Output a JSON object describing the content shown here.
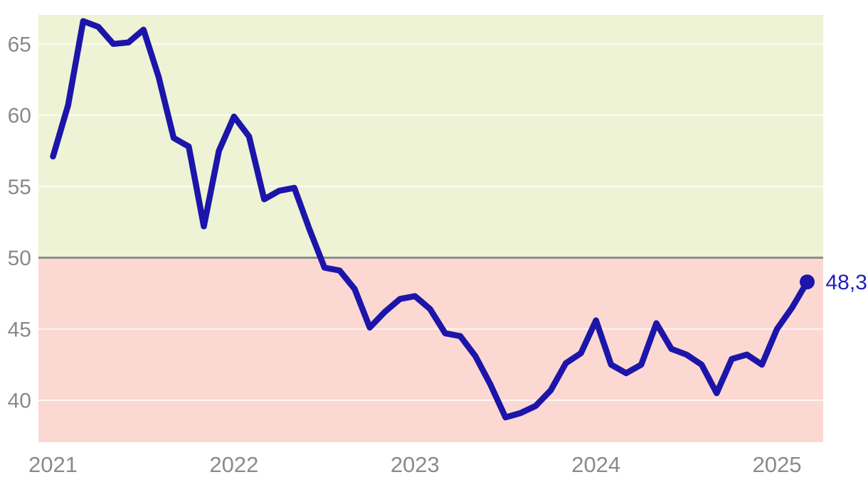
{
  "chart_data": {
    "type": "line",
    "title": "",
    "frequency": "monthly",
    "start": "2021-01",
    "end": "2025-03",
    "values": [
      57.1,
      60.7,
      66.6,
      66.2,
      65.0,
      65.1,
      66.0,
      62.7,
      58.4,
      57.8,
      52.2,
      57.5,
      59.9,
      58.5,
      54.1,
      54.7,
      54.9,
      52.0,
      49.3,
      49.1,
      47.8,
      45.1,
      46.2,
      47.1,
      47.3,
      46.4,
      44.7,
      44.5,
      43.1,
      41.1,
      38.8,
      39.1,
      39.6,
      40.7,
      42.6,
      43.3,
      45.6,
      42.5,
      41.9,
      42.5,
      45.4,
      43.6,
      43.2,
      42.5,
      40.5,
      42.9,
      43.2,
      42.5,
      45.0,
      46.5,
      48.3
    ],
    "x_tick_labels": [
      "2021",
      "2022",
      "2023",
      "2024",
      "2025"
    ],
    "y_tick_labels": [
      "40",
      "45",
      "50",
      "55",
      "60",
      "65"
    ],
    "ylim": [
      37,
      67
    ],
    "grid": "horizontal",
    "legend": "none",
    "threshold": 50,
    "end_point_label": "48,3",
    "colors": {
      "line": "#1c15aa",
      "marker": "#1c15aa",
      "end_label_text": "#2020bb",
      "zone_above_threshold": "#edf3d4",
      "zone_below_threshold": "#fbd8d2",
      "threshold_line": "#8e8e8e",
      "gridline": "#ffffff",
      "axis_text": "#8a8a8a",
      "background": "#ffffff"
    }
  }
}
